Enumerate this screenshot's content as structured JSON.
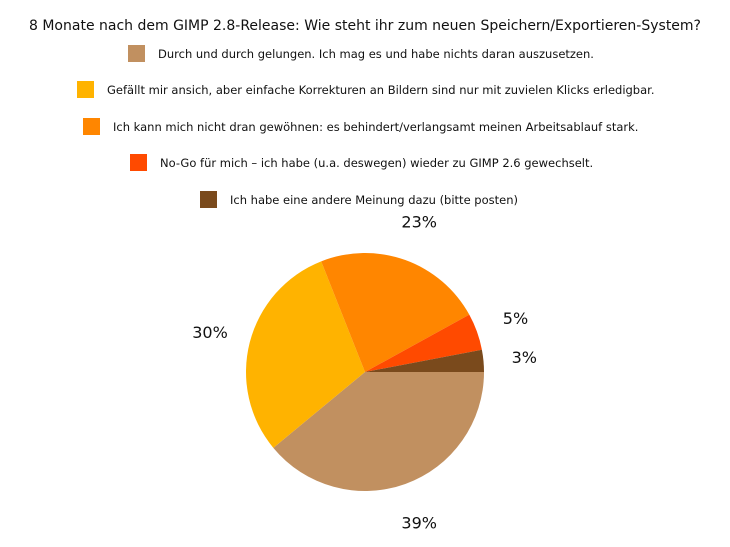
{
  "chart_data": {
    "type": "pie",
    "title": "8 Monate nach dem GIMP 2.8-Release: Wie steht ihr zum neuen Speichern/Exportieren-System?",
    "categories": [
      "Durch und durch gelungen. Ich mag es und habe nichts daran auszusetzen.",
      "Gefällt mir ansich, aber einfache Korrekturen an Bildern sind nur mit zuvielen Klicks erledigbar.",
      "Ich kann mich nicht dran gewöhnen: es behindert/verlangsamt meinen Arbeitsablauf stark.",
      "No-Go für mich – ich habe (u.a. deswegen) wieder zu GIMP 2.6 gewechselt.",
      "Ich habe eine andere Meinung dazu (bitte posten)"
    ],
    "values": [
      39,
      30,
      23,
      5,
      3
    ],
    "value_labels": [
      "39%",
      "30%",
      "23%",
      "5%",
      "3%"
    ],
    "colors": [
      "#c19060",
      "#ffb300",
      "#ff8600",
      "#ff4a00",
      "#7a4a1c"
    ],
    "legend_position": "top"
  }
}
